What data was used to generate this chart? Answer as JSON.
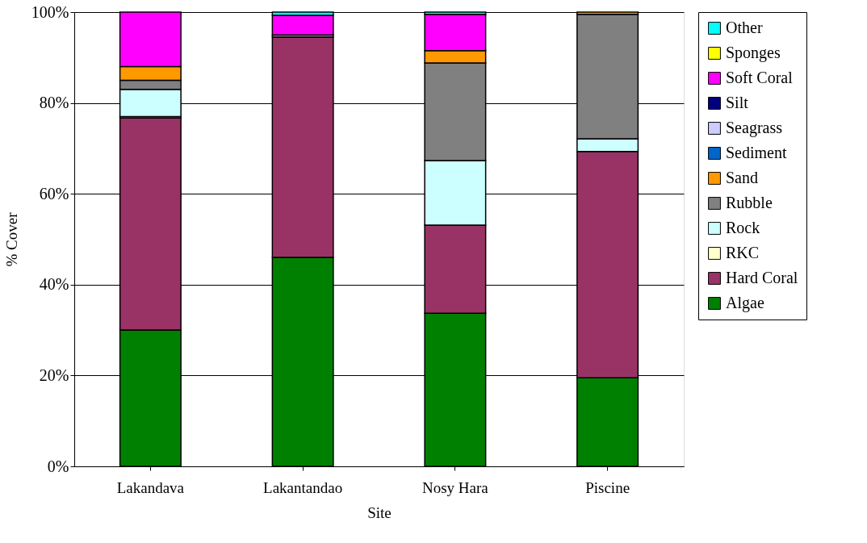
{
  "chart_data": {
    "type": "bar",
    "stacked": true,
    "xlabel": "Site",
    "ylabel": "% Cover",
    "categories": [
      "Lakandava",
      "Lakantandao",
      "Nosy Hara",
      "Piscine"
    ],
    "series": [
      {
        "name": "Algae",
        "color": "#008000",
        "values": [
          30,
          46,
          33.7,
          19.5
        ]
      },
      {
        "name": "Hard Coral",
        "color": "#993366",
        "values": [
          46.7,
          48.5,
          19.4,
          49.8
        ]
      },
      {
        "name": "RKC",
        "color": "#ffffcc",
        "values": [
          0.3,
          0,
          0,
          0
        ]
      },
      {
        "name": "Rock",
        "color": "#ccffff",
        "values": [
          6,
          0,
          14.2,
          2.8
        ]
      },
      {
        "name": "Rubble",
        "color": "#808080",
        "values": [
          2,
          0.5,
          21.5,
          27.4
        ]
      },
      {
        "name": "Sand",
        "color": "#ff9900",
        "values": [
          3,
          0,
          2.7,
          0.5
        ]
      },
      {
        "name": "Sediment",
        "color": "#0066cc",
        "values": [
          0,
          0,
          0,
          0
        ]
      },
      {
        "name": "Seagrass",
        "color": "#ccccff",
        "values": [
          0,
          0,
          0,
          0
        ]
      },
      {
        "name": "Silt",
        "color": "#000080",
        "values": [
          0,
          0,
          0,
          0
        ]
      },
      {
        "name": "Soft Coral",
        "color": "#ff00ff",
        "values": [
          12,
          4.3,
          8,
          0
        ]
      },
      {
        "name": "Sponges",
        "color": "#ffff00",
        "values": [
          0,
          0,
          0,
          0
        ]
      },
      {
        "name": "Other",
        "color": "#00ffff",
        "values": [
          0,
          0.7,
          0.5,
          0
        ]
      }
    ],
    "ylim": [
      0,
      100
    ],
    "yticks": [
      {
        "value": 0,
        "label": "0%"
      },
      {
        "value": 20,
        "label": "20%"
      },
      {
        "value": 40,
        "label": "40%"
      },
      {
        "value": 60,
        "label": "60%"
      },
      {
        "value": 80,
        "label": "80%"
      },
      {
        "value": 100,
        "label": "100%"
      }
    ],
    "grid": "y",
    "legend": "right"
  }
}
